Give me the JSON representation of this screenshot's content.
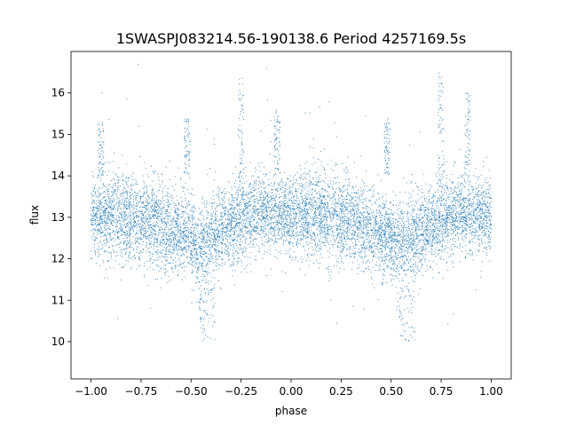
{
  "chart_data": {
    "type": "scatter",
    "title": "1SWASPJ083214.56-190138.6 Period 4257169.5s",
    "xlabel": "phase",
    "ylabel": "flux",
    "xlim": [
      -1.1,
      1.1
    ],
    "ylim": [
      9.1,
      17.0
    ],
    "grid": false,
    "legend": "none",
    "marker_color": "#1f77b4",
    "x_ticks": [
      -1.0,
      -0.75,
      -0.5,
      -0.25,
      0.0,
      0.25,
      0.5,
      0.75,
      1.0
    ],
    "x_tick_labels": [
      "−1.00",
      "−0.75",
      "−0.50",
      "−0.25",
      "0.00",
      "0.25",
      "0.50",
      "0.75",
      "1.00"
    ],
    "y_ticks": [
      10,
      11,
      12,
      13,
      14,
      15,
      16
    ],
    "y_tick_labels": [
      "10",
      "11",
      "12",
      "13",
      "14",
      "15",
      "16"
    ],
    "phase_profile": {
      "phase": [
        -1.0,
        -0.9,
        -0.8,
        -0.7,
        -0.6,
        -0.5,
        -0.45,
        -0.4,
        -0.3,
        -0.25,
        -0.2,
        -0.1,
        0.0,
        0.1,
        0.2,
        0.3,
        0.4,
        0.5,
        0.55,
        0.6,
        0.7,
        0.75,
        0.8,
        0.9,
        1.0
      ],
      "mean_flux": [
        13.0,
        13.1,
        13.0,
        12.9,
        12.7,
        12.5,
        12.3,
        12.5,
        12.8,
        12.9,
        13.1,
        13.1,
        13.0,
        13.1,
        13.0,
        12.9,
        12.7,
        12.5,
        12.3,
        12.5,
        12.8,
        12.9,
        13.1,
        13.1,
        13.0
      ],
      "spread": [
        0.6,
        0.7,
        0.7,
        0.7,
        0.7,
        0.6,
        0.7,
        0.7,
        0.6,
        0.7,
        0.6,
        0.6,
        0.6,
        0.7,
        0.7,
        0.7,
        0.7,
        0.6,
        0.7,
        0.7,
        0.6,
        0.7,
        0.6,
        0.6,
        0.6
      ]
    },
    "flares": [
      {
        "phase": -0.25,
        "flux_min": 13.5,
        "flux_max": 16.5
      },
      {
        "phase": 0.75,
        "flux_min": 13.5,
        "flux_max": 16.5
      },
      {
        "phase": -0.95,
        "flux_min": 14.0,
        "flux_max": 15.3
      },
      {
        "phase": -0.07,
        "flux_min": 14.0,
        "flux_max": 15.6
      },
      {
        "phase": 0.88,
        "flux_min": 14.0,
        "flux_max": 16.0
      },
      {
        "phase": -0.52,
        "flux_min": 14.0,
        "flux_max": 15.4
      },
      {
        "phase": 0.48,
        "flux_min": 14.0,
        "flux_max": 15.4
      }
    ],
    "dips": [
      {
        "phase": -0.42,
        "flux_min": 10.0,
        "flux_max": 11.3
      },
      {
        "phase": 0.58,
        "flux_min": 10.0,
        "flux_max": 11.3
      }
    ],
    "n_points": 9000
  }
}
